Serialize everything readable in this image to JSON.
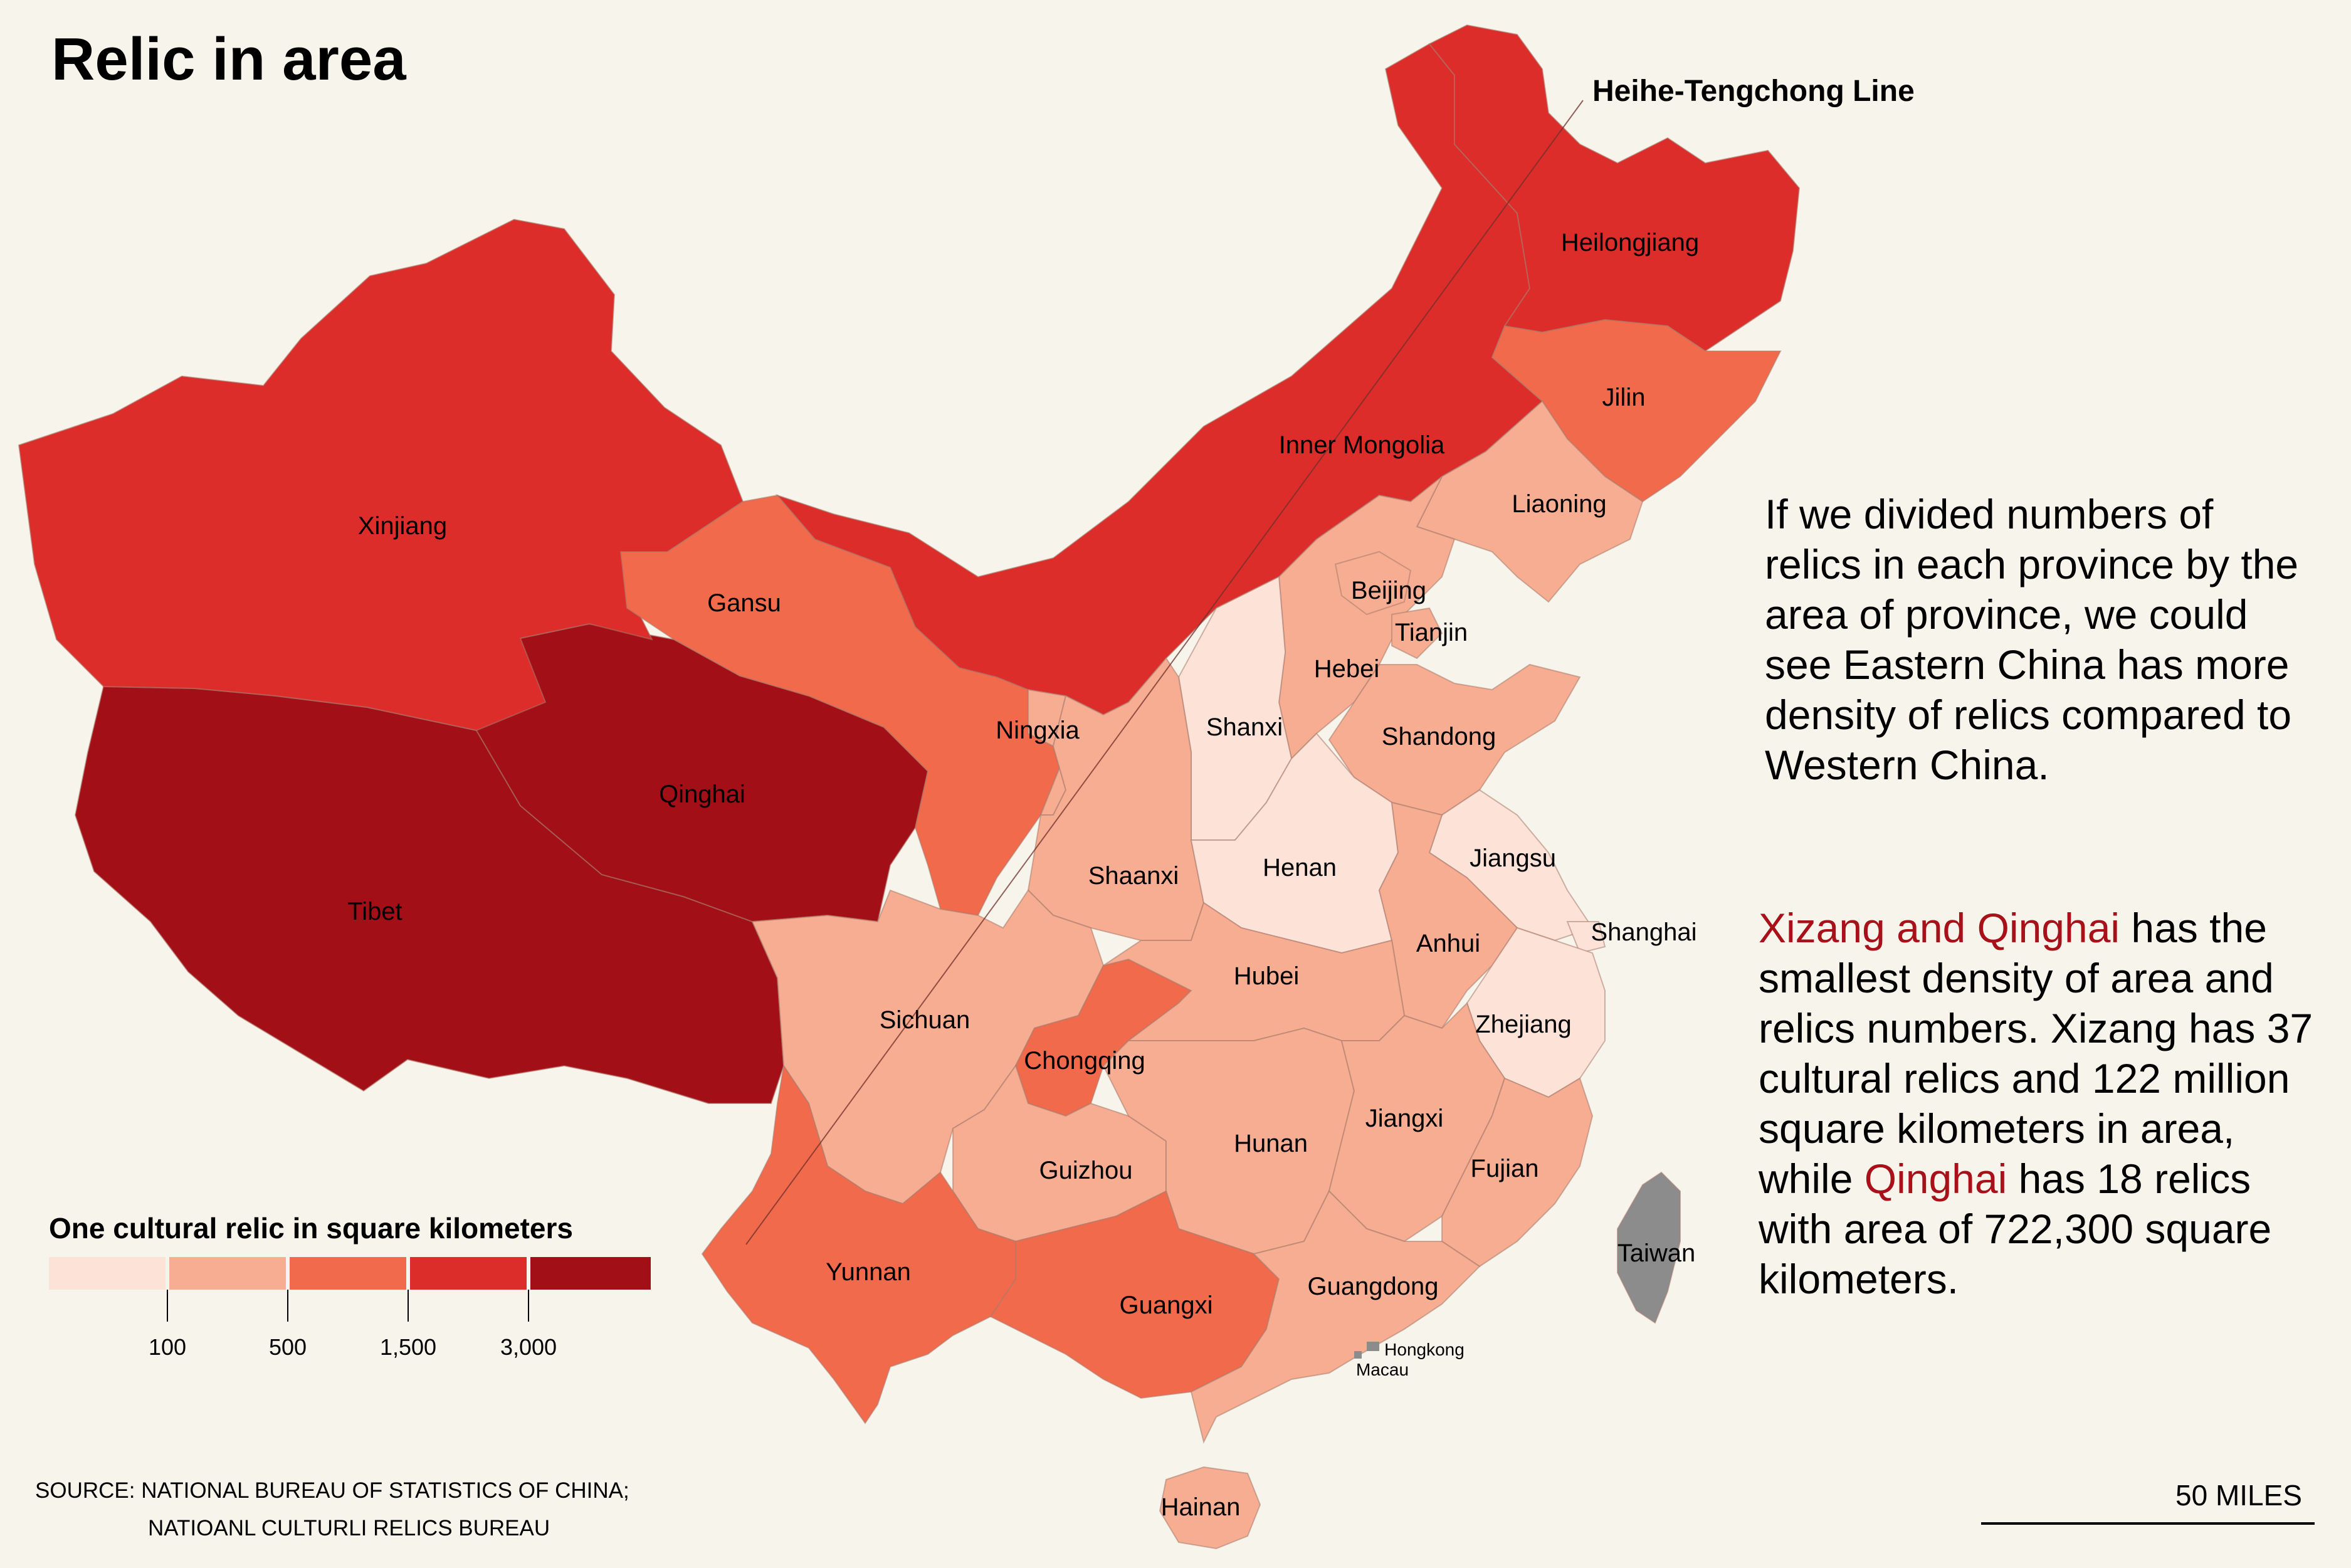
{
  "title": "Relic in area",
  "line_label": "Heihe-Tengchong Line",
  "paragraph1": "If we divided numbers of relics in each province by the area of province, we could see Eastern China has more density of relics compared to Western China.",
  "paragraph2": {
    "hl1": "Xizang and Qinghai",
    "t1": " has the smallest density of area and relics numbers. Xizang has 37 cultural relics and 122 million square kilometers in area, while ",
    "hl2": "Qinghai",
    "t2": " has 18 relics with area of 722,300 square kilometers."
  },
  "legend": {
    "title": "One cultural relic in square kilometers",
    "colors": [
      "#fde3d7",
      "#f6ad91",
      "#f26a4c",
      "#dc2d2a",
      "#a30f17"
    ],
    "ticks": [
      "100",
      "500",
      "1,500",
      "3,000"
    ]
  },
  "source": {
    "line1": "SOURCE: NATIONAL BUREAU OF STATISTICS OF CHINA;",
    "line2": "NATIOANL CULTURLI RELICS BUREAU"
  },
  "scale_label": "50 MILES",
  "colors": {
    "background": "#f7f4ec",
    "highlight": "#a8101a",
    "no_data": "#8c8c8c"
  },
  "provinces": {
    "heilongjiang": "Heilongjiang",
    "inner_mongolia": "Inner Mongolia",
    "jilin": "Jilin",
    "liaoning": "Liaoning",
    "xinjiang": "Xinjiang",
    "gansu": "Gansu",
    "qinghai": "Qinghai",
    "tibet": "Tibet",
    "ningxia": "Ningxia",
    "beijing": "Beijing",
    "tianjin": "Tianjin",
    "hebei": "Hebei",
    "shanxi": "Shanxi",
    "shandong": "Shandong",
    "henan": "Henan",
    "jiangsu": "Jiangsu",
    "shanghai": "Shanghai",
    "anhui": "Anhui",
    "shaanxi": "Shaanxi",
    "sichuan": "Sichuan",
    "hubei": "Hubei",
    "zhejiang": "Zhejiang",
    "chongqing": "Chongqing",
    "jiangxi": "Jiangxi",
    "hunan": "Hunan",
    "guizhou": "Guizhou",
    "fujian": "Fujian",
    "yunnan": "Yunnan",
    "guangxi": "Guangxi",
    "guangdong": "Guangdong",
    "taiwan": "Taiwan",
    "hongkong": "Hongkong",
    "macau": "Macau",
    "hainan": "Hainan"
  }
}
